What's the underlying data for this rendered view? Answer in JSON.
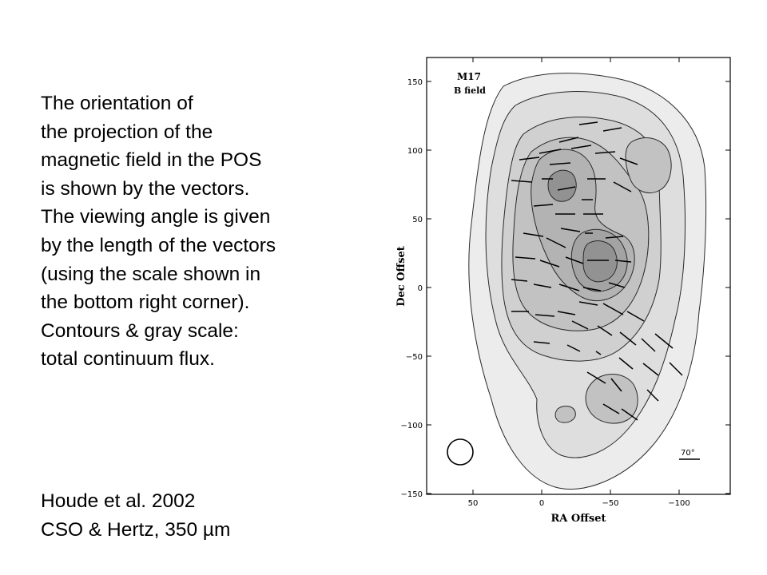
{
  "description": {
    "lines": [
      "The orientation of",
      "the projection of the",
      "magnetic field in the POS",
      "is shown by the vectors.",
      "The viewing angle is given",
      "by the length of the vectors",
      "(using the scale shown in",
      "the bottom right corner).",
      "Contours & gray scale:",
      "total continuum flux."
    ]
  },
  "citation": {
    "lines": [
      "Houde et al. 2002",
      "CSO & Hertz, 350 µm"
    ]
  },
  "figure": {
    "title_line1": "M17",
    "title_line2": "B field",
    "scale_label": "70°",
    "xlabel": "RA Offset",
    "ylabel": "Dec Offset",
    "x_ticks": [
      "50",
      "0",
      "−50",
      "−100"
    ],
    "y_ticks": [
      "150",
      "100",
      "50",
      "0",
      "−50",
      "−100",
      "−150"
    ]
  },
  "colors": {
    "contour_stroke": "#2a2a2a",
    "gray_levels": [
      "#ececec",
      "#dedede",
      "#d0d0d0",
      "#c2c2c2",
      "#b3b3b3",
      "#a3a3a3",
      "#929292"
    ]
  }
}
